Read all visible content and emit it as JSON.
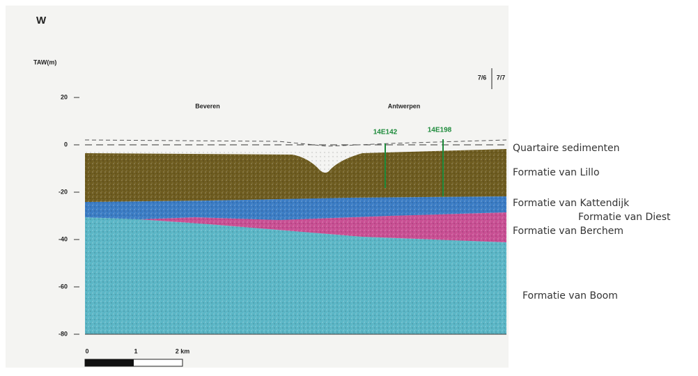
{
  "header": {
    "direction": "W",
    "axis_label": "TAW(m)",
    "sheets": [
      "7/6",
      "7/7"
    ]
  },
  "axis": {
    "ticks": [
      20,
      0,
      -20,
      -40,
      -60,
      -80
    ]
  },
  "places": [
    "Beveren",
    "Antwerpen"
  ],
  "boreholes": [
    "14E142",
    "14E198"
  ],
  "layers": [
    "Quartaire sedimenten",
    "Formatie van Lillo",
    "Formatie van Kattendijk",
    "Formatie van Diest",
    "Formatie van Berchem",
    "Formatie van Boom"
  ],
  "scale": {
    "labels": [
      "0",
      "1",
      "2 km"
    ]
  }
}
